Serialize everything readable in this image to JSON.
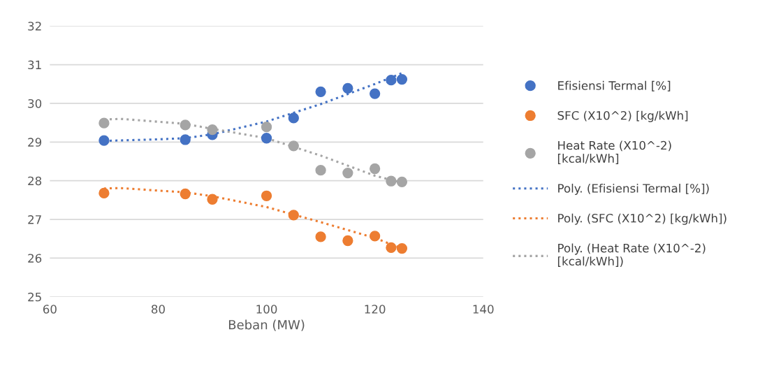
{
  "chart_data": {
    "type": "scatter",
    "xlabel": "Beban (MW)",
    "xlim": [
      60,
      140
    ],
    "xticks": [
      60,
      80,
      100,
      120,
      140
    ],
    "ylim": [
      25,
      32
    ],
    "yticks": [
      25,
      26,
      27,
      28,
      29,
      30,
      31,
      32
    ],
    "grid": "y",
    "legend": "right",
    "marker": "circle",
    "x": [
      70,
      85,
      90,
      100,
      105,
      110,
      115,
      120,
      123,
      125
    ],
    "series": [
      {
        "name": "Efisiensi Termal [%]",
        "color": "#4472c4",
        "values": [
          29.04,
          29.06,
          29.19,
          29.1,
          29.62,
          30.3,
          30.39,
          30.25,
          30.6,
          30.62
        ]
      },
      {
        "name": "SFC (X10^2) [kg/kWh]",
        "color": "#ed7d31",
        "values": [
          27.68,
          27.66,
          27.52,
          27.61,
          27.11,
          26.55,
          26.45,
          26.57,
          26.27,
          26.25
        ]
      },
      {
        "name": "Heat Rate (X10^-2)\n[kcal/kWh]",
        "color": "#a5a5a5",
        "values": [
          29.49,
          29.44,
          29.32,
          29.39,
          28.9,
          28.27,
          28.2,
          28.31,
          27.99,
          27.97
        ]
      },
      {
        "name": "Poly. (Efisiensi Termal [%])",
        "type": "line",
        "line_style": "dotted",
        "marker": "none",
        "color": "#4472c4",
        "x": [
          70,
          80,
          85,
          90,
          100,
          110,
          120,
          125
        ],
        "values": [
          29.03,
          29.07,
          29.1,
          29.2,
          29.53,
          29.98,
          30.5,
          30.78
        ]
      },
      {
        "name": "Poly. (SFC (X10^2) [kg/kWh])",
        "type": "line",
        "line_style": "dotted",
        "marker": "none",
        "color": "#ed7d31",
        "x": [
          70,
          73,
          85,
          90,
          100,
          110,
          120,
          125
        ],
        "values": [
          27.8,
          27.81,
          27.7,
          27.6,
          27.32,
          26.93,
          26.52,
          26.25
        ]
      },
      {
        "name": "Poly. (Heat Rate (X10^-2)\n[kcal/kWh])",
        "type": "line",
        "line_style": "dotted",
        "marker": "none",
        "color": "#a5a5a5",
        "x": [
          70,
          73,
          85,
          90,
          100,
          110,
          120,
          125
        ],
        "values": [
          29.58,
          29.6,
          29.47,
          29.34,
          29.1,
          28.65,
          28.13,
          27.95
        ]
      }
    ]
  }
}
